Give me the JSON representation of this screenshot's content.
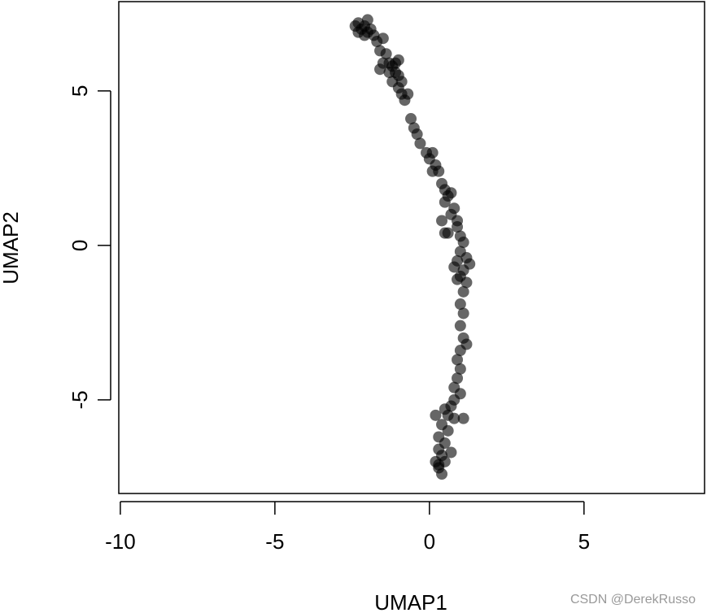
{
  "chart_data": {
    "type": "scatter",
    "xlabel": "UMAP1",
    "ylabel": "UMAP2",
    "watermark": "CSDN @DerekRusso",
    "color": "rgba(0,0,0,0.6)",
    "xlim": [
      -10.05,
      8.9
    ],
    "ylim": [
      -8.03,
      7.89
    ],
    "xticks": [
      -10,
      -5,
      0,
      5
    ],
    "yticks": [
      -5,
      0,
      5
    ],
    "x": [
      -2.3,
      -2.2,
      -2.1,
      -2.0,
      -2.3,
      -2.0,
      -1.9,
      -2.4,
      -2.1,
      -1.8,
      -1.7,
      -1.5,
      -1.6,
      -1.4,
      -1.5,
      -1.3,
      -1.2,
      -1.1,
      -1.3,
      -1.0,
      -1.2,
      -0.9,
      -1.0,
      -0.9,
      -0.8,
      -0.7,
      -1.1,
      -1.0,
      -1.6,
      -0.6,
      -0.5,
      -0.4,
      -0.3,
      -0.1,
      0.0,
      0.1,
      0.2,
      0.1,
      0.3,
      0.4,
      0.5,
      0.6,
      0.7,
      0.5,
      0.8,
      0.7,
      0.9,
      0.4,
      0.6,
      0.9,
      1.0,
      0.5,
      1.1,
      1.0,
      1.2,
      0.9,
      1.3,
      1.1,
      0.8,
      1.0,
      1.2,
      0.9,
      1.1,
      1.0,
      1.1,
      1.0,
      1.1,
      1.2,
      1.0,
      0.9,
      1.0,
      0.9,
      0.8,
      1.0,
      0.8,
      0.7,
      0.5,
      0.6,
      0.8,
      0.4,
      0.6,
      0.3,
      0.5,
      0.3,
      0.4,
      0.2,
      0.3,
      0.4,
      0.3,
      0.5,
      0.7,
      1.1,
      0.2
    ],
    "y": [
      7.2,
      7.0,
      7.1,
      7.3,
      6.9,
      6.9,
      7.0,
      7.1,
      6.8,
      6.8,
      6.6,
      6.7,
      6.3,
      6.2,
      5.9,
      5.9,
      5.8,
      5.6,
      5.6,
      5.5,
      5.3,
      5.3,
      5.1,
      4.9,
      4.7,
      4.9,
      5.9,
      6.0,
      5.7,
      4.1,
      3.8,
      3.6,
      3.3,
      3.0,
      2.8,
      3.0,
      2.6,
      2.4,
      2.4,
      2.0,
      1.8,
      1.6,
      1.7,
      1.4,
      1.2,
      1.0,
      0.8,
      0.8,
      0.4,
      0.6,
      0.3,
      0.4,
      0.1,
      -0.2,
      -0.4,
      -0.5,
      -0.6,
      -0.8,
      -0.7,
      -1.0,
      -1.2,
      -1.1,
      -1.5,
      -1.9,
      -2.2,
      -2.6,
      -3.0,
      -3.2,
      -3.4,
      -3.7,
      -4.0,
      -4.3,
      -4.6,
      -4.8,
      -5.0,
      -5.2,
      -5.3,
      -5.5,
      -5.6,
      -5.8,
      -6.0,
      -6.2,
      -6.4,
      -6.6,
      -6.8,
      -7.0,
      -7.2,
      -7.4,
      -7.1,
      -7.0,
      -6.7,
      -5.6,
      -5.5
    ]
  }
}
